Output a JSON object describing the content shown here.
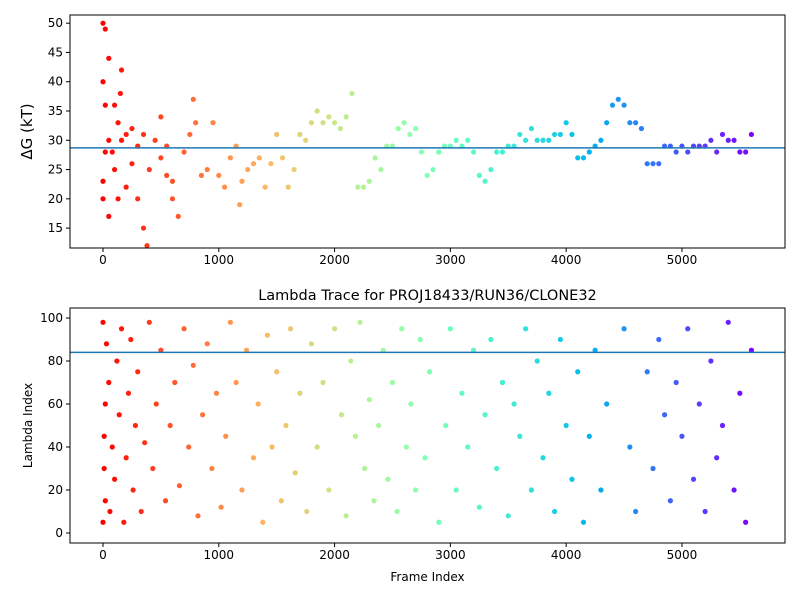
{
  "chart_data": [
    {
      "type": "scatter",
      "ylabel": "ΔG (kT)",
      "colormap": "rainbow_r",
      "hline": 28.7,
      "hline_color": "#1f77b4",
      "xlim": [
        -285,
        5890
      ],
      "ylim": [
        11.6,
        51.4
      ],
      "xticks": [
        0,
        1000,
        2000,
        3000,
        4000,
        5000
      ],
      "yticks": [
        15,
        20,
        25,
        30,
        35,
        40,
        45,
        50
      ],
      "x": [
        0,
        0,
        0,
        0,
        20,
        20,
        20,
        50,
        50,
        50,
        80,
        100,
        100,
        130,
        130,
        150,
        160,
        160,
        200,
        200,
        250,
        250,
        300,
        300,
        350,
        350,
        380,
        400,
        450,
        500,
        500,
        550,
        550,
        600,
        600,
        650,
        700,
        750,
        780,
        800,
        850,
        900,
        950,
        1000,
        1050,
        1100,
        1150,
        1180,
        1200,
        1250,
        1300,
        1350,
        1400,
        1450,
        1500,
        1550,
        1600,
        1650,
        1700,
        1750,
        1800,
        1850,
        1900,
        1950,
        2000,
        2050,
        2100,
        2150,
        2200,
        2250,
        2300,
        2350,
        2400,
        2450,
        2500,
        2550,
        2600,
        2650,
        2700,
        2750,
        2800,
        2850,
        2900,
        2950,
        3000,
        3050,
        3100,
        3150,
        3200,
        3250,
        3300,
        3350,
        3400,
        3450,
        3500,
        3550,
        3600,
        3650,
        3700,
        3750,
        3800,
        3850,
        3900,
        3950,
        4000,
        4050,
        4100,
        4150,
        4200,
        4250,
        4300,
        4350,
        4400,
        4450,
        4500,
        4550,
        4600,
        4650,
        4700,
        4750,
        4800,
        4850,
        4900,
        4950,
        5000,
        5050,
        5100,
        5150,
        5200,
        5250,
        5300,
        5350,
        5400,
        5450,
        5500,
        5550,
        5600
      ],
      "values": [
        50,
        20,
        40,
        23,
        49,
        36,
        28,
        44,
        30,
        17,
        28,
        36,
        25,
        33,
        20,
        38,
        42,
        30,
        31,
        22,
        32,
        26,
        29,
        20,
        31,
        15,
        12,
        25,
        30,
        34,
        27,
        29,
        24,
        20,
        23,
        17,
        28,
        31,
        37,
        33,
        24,
        25,
        33,
        24,
        22,
        27,
        29,
        19,
        23,
        25,
        26,
        27,
        22,
        26,
        31,
        27,
        22,
        25,
        31,
        30,
        33,
        35,
        33,
        34,
        33,
        32,
        34,
        38,
        22,
        22,
        23,
        27,
        25,
        29,
        29,
        32,
        33,
        31,
        32,
        28,
        24,
        25,
        28,
        29,
        29,
        30,
        29,
        30,
        28,
        24,
        23,
        25,
        28,
        28,
        29,
        29,
        31,
        30,
        32,
        30,
        30,
        30,
        31,
        31,
        33,
        31,
        27,
        27,
        28,
        29,
        30,
        33,
        36,
        37,
        36,
        33,
        33,
        32,
        26,
        26,
        26,
        29,
        29,
        28,
        29,
        28,
        29,
        29,
        29,
        30,
        28,
        31,
        30,
        30,
        28,
        28,
        31
      ]
    },
    {
      "type": "scatter",
      "title": "Lambda Trace for PROJ18433/RUN36/CLONE32",
      "xlabel": "Frame Index",
      "ylabel": "Lambda Index",
      "colormap": "rainbow_r",
      "hline": 84,
      "hline_color": "#1f77b4",
      "xlim": [
        -285,
        5890
      ],
      "ylim": [
        -4.65,
        104.65
      ],
      "xticks": [
        0,
        1000,
        2000,
        3000,
        4000,
        5000
      ],
      "yticks": [
        0,
        20,
        40,
        60,
        80,
        100
      ],
      "x": [
        0,
        0,
        10,
        10,
        20,
        20,
        30,
        50,
        60,
        80,
        100,
        120,
        140,
        160,
        180,
        200,
        220,
        240,
        260,
        280,
        300,
        330,
        360,
        400,
        430,
        460,
        500,
        540,
        580,
        620,
        660,
        700,
        740,
        780,
        820,
        860,
        900,
        940,
        980,
        1020,
        1060,
        1100,
        1150,
        1200,
        1240,
        1300,
        1340,
        1380,
        1420,
        1460,
        1500,
        1540,
        1580,
        1620,
        1660,
        1700,
        1760,
        1800,
        1850,
        1900,
        1950,
        2000,
        2060,
        2100,
        2140,
        2180,
        2220,
        2260,
        2300,
        2340,
        2380,
        2420,
        2460,
        2500,
        2540,
        2580,
        2620,
        2660,
        2700,
        2740,
        2780,
        2820,
        2900,
        2960,
        3000,
        3050,
        3100,
        3150,
        3200,
        3250,
        3300,
        3350,
        3400,
        3450,
        3500,
        3550,
        3600,
        3650,
        3700,
        3750,
        3800,
        3850,
        3900,
        3950,
        4000,
        4050,
        4100,
        4150,
        4200,
        4250,
        4300,
        4350,
        4500,
        4550,
        4600,
        4700,
        4750,
        4800,
        4850,
        4900,
        4950,
        5000,
        5050,
        5100,
        5150,
        5200,
        5250,
        5300,
        5350,
        5400,
        5450,
        5500,
        5550,
        5600
      ],
      "values": [
        98,
        5,
        45,
        30,
        60,
        15,
        88,
        70,
        10,
        40,
        25,
        80,
        55,
        95,
        5,
        35,
        65,
        90,
        20,
        50,
        75,
        10,
        42,
        98,
        30,
        60,
        85,
        15,
        50,
        70,
        22,
        95,
        40,
        78,
        8,
        55,
        88,
        30,
        65,
        12,
        45,
        98,
        70,
        20,
        85,
        35,
        60,
        5,
        92,
        40,
        75,
        15,
        50,
        95,
        28,
        65,
        10,
        88,
        40,
        70,
        20,
        95,
        55,
        8,
        80,
        45,
        98,
        30,
        62,
        15,
        50,
        85,
        25,
        70,
        10,
        95,
        40,
        60,
        20,
        90,
        35,
        75,
        5,
        50,
        95,
        20,
        65,
        40,
        85,
        12,
        55,
        90,
        30,
        70,
        8,
        60,
        45,
        95,
        20,
        80,
        35,
        65,
        10,
        90,
        50,
        25,
        75,
        5,
        45,
        85,
        20,
        60,
        95,
        40,
        10,
        75,
        30,
        90,
        55,
        15,
        70,
        45,
        95,
        25,
        60,
        10,
        80,
        35,
        50,
        98,
        20,
        65,
        5,
        85
      ]
    }
  ]
}
